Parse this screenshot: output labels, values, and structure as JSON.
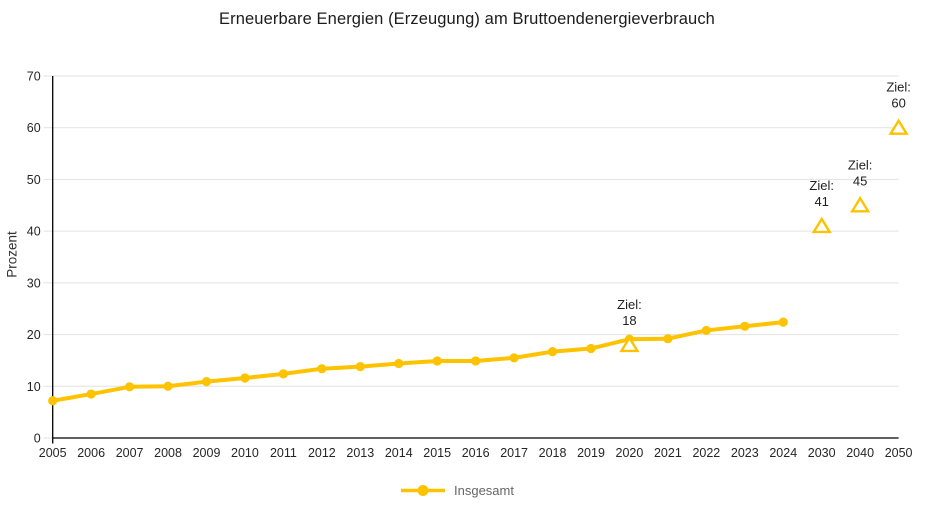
{
  "title": "Erneuerbare Energien (Erzeugung) am Bruttoendenergieverbrauch",
  "legend": {
    "label": "Insgesamt"
  },
  "colors": {
    "series": "#FDC300",
    "grid": "#E2E2E2",
    "axis": "#000000",
    "tick_text": "#262626",
    "legend_text": "#666666"
  },
  "chart_data": {
    "type": "line",
    "title": "Erneuerbare Energien (Erzeugung) am Bruttoendenergieverbrauch",
    "xlabel": "",
    "ylabel": "Prozent",
    "ylim": [
      0,
      70
    ],
    "yticks": [
      0,
      10,
      20,
      30,
      40,
      50,
      60,
      70
    ],
    "grid": "horizontal",
    "legend_position": "bottom",
    "categories": [
      "2005",
      "2006",
      "2007",
      "2008",
      "2009",
      "2010",
      "2011",
      "2012",
      "2013",
      "2014",
      "2015",
      "2016",
      "2017",
      "2018",
      "2019",
      "2020",
      "2021",
      "2022",
      "2023",
      "2024",
      "2030",
      "2040",
      "2050"
    ],
    "series": [
      {
        "name": "Insgesamt",
        "color": "#FDC300",
        "marker": "circle",
        "values": [
          7.2,
          8.5,
          9.9,
          10.0,
          10.9,
          11.6,
          12.4,
          13.4,
          13.8,
          14.4,
          14.9,
          14.9,
          15.5,
          16.7,
          17.3,
          19.1,
          19.2,
          20.8,
          21.6,
          22.4
        ]
      }
    ],
    "targets": [
      {
        "category": "2020",
        "value": 18,
        "label_line1": "Ziel:",
        "label_line2": "18"
      },
      {
        "category": "2030",
        "value": 41,
        "label_line1": "Ziel:",
        "label_line2": "41"
      },
      {
        "category": "2040",
        "value": 45,
        "label_line1": "Ziel:",
        "label_line2": "45"
      },
      {
        "category": "2050",
        "value": 60,
        "label_line1": "Ziel:",
        "label_line2": "60"
      }
    ],
    "target_marker": "triangle-open"
  }
}
